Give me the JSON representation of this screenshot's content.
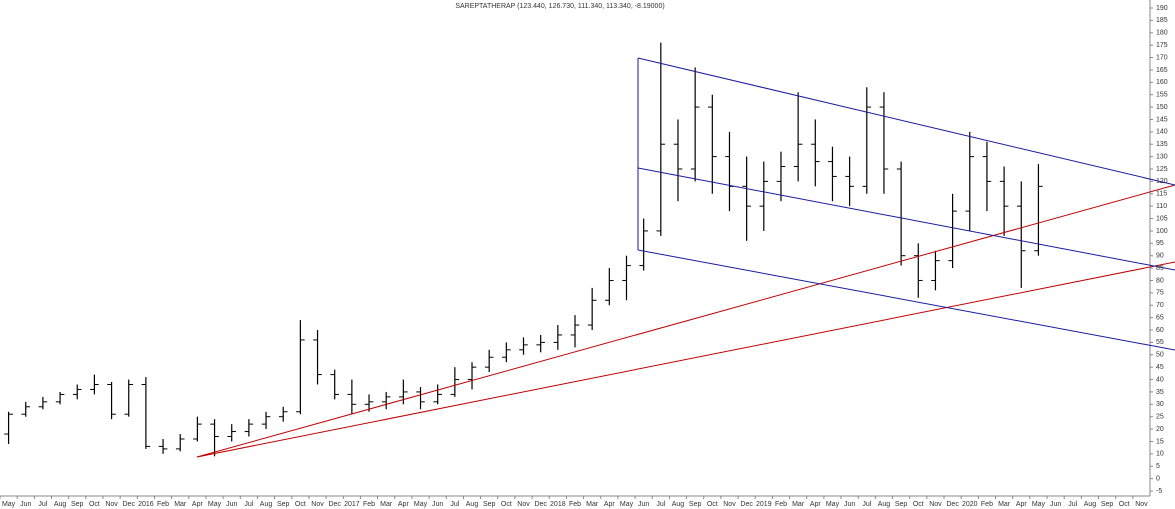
{
  "chart_data": {
    "type": "ohlc",
    "title": "SAREPTATHERAP (123.440, 126.730, 111.340, 113.340, -8.19000)",
    "color": "#000000",
    "categories": [
      "May",
      "Jun",
      "Jul",
      "Aug",
      "Sep",
      "Oct",
      "Nov",
      "Dec",
      "2016",
      "Feb",
      "Mar",
      "Apr",
      "May",
      "Jun",
      "Jul",
      "Aug",
      "Sep",
      "Oct",
      "Nov",
      "Dec",
      "2017",
      "Feb",
      "Mar",
      "Apr",
      "May",
      "Jun",
      "Jul",
      "Aug",
      "Sep",
      "Oct",
      "Nov",
      "Dec",
      "2018",
      "Feb",
      "Mar",
      "Apr",
      "May",
      "Jun",
      "Jul",
      "Aug",
      "Sep",
      "Oct",
      "Nov",
      "Dec",
      "2019",
      "Feb",
      "Mar",
      "Apr",
      "May",
      "Jun",
      "Jul",
      "Aug",
      "Sep",
      "Oct",
      "Nov",
      "Dec",
      "2020",
      "Feb",
      "Mar",
      "Apr",
      "May",
      "Jun",
      "Jul",
      "Aug",
      "Sep",
      "Oct",
      "Nov"
    ],
    "open": [
      18,
      26,
      29,
      31,
      34,
      36,
      38,
      26,
      38,
      13,
      12,
      16,
      22,
      17,
      19,
      22,
      25,
      27,
      56,
      42,
      34,
      30,
      31,
      33,
      35,
      31,
      34,
      40,
      45,
      49,
      52,
      54,
      55,
      58,
      62,
      72,
      80,
      86,
      100,
      135,
      125,
      150,
      130,
      118,
      110,
      120,
      126,
      135,
      128,
      122,
      118,
      150,
      125,
      90,
      80,
      88,
      108,
      130,
      120,
      110,
      92,
      null,
      null,
      null,
      null,
      null,
      null
    ],
    "high": [
      27,
      31,
      33,
      35,
      38,
      42,
      39,
      40,
      41,
      16,
      18,
      25,
      24,
      22,
      24,
      27,
      29,
      64,
      60,
      44,
      40,
      34,
      35,
      40,
      37,
      38,
      45,
      47,
      52,
      55,
      57,
      58,
      62,
      66,
      77,
      85,
      90,
      105,
      176,
      145,
      166,
      155,
      140,
      130,
      128,
      132,
      156,
      145,
      134,
      130,
      158,
      156,
      128,
      95,
      92,
      115,
      140,
      136,
      126,
      120,
      127,
      null,
      null,
      null,
      null,
      null,
      null
    ],
    "low": [
      14,
      25,
      28,
      30,
      32,
      34,
      24,
      25,
      12,
      10,
      11,
      15,
      9,
      15,
      17,
      20,
      23,
      26,
      38,
      32,
      26,
      27,
      28,
      30,
      28,
      30,
      33,
      36,
      43,
      47,
      50,
      51,
      52,
      53,
      60,
      70,
      72,
      84,
      98,
      112,
      120,
      115,
      108,
      96,
      100,
      112,
      120,
      118,
      112,
      110,
      115,
      115,
      86,
      73,
      76,
      85,
      100,
      108,
      98,
      77,
      90,
      null,
      null,
      null,
      null,
      null,
      null
    ],
    "close": [
      26,
      29,
      31,
      34,
      36,
      38,
      26,
      38,
      13,
      12,
      16,
      22,
      17,
      19,
      22,
      25,
      27,
      56,
      42,
      34,
      30,
      31,
      33,
      35,
      31,
      34,
      40,
      45,
      49,
      52,
      54,
      55,
      58,
      62,
      72,
      80,
      86,
      100,
      135,
      125,
      150,
      130,
      118,
      110,
      120,
      126,
      135,
      128,
      122,
      118,
      150,
      125,
      90,
      80,
      88,
      108,
      130,
      120,
      110,
      92,
      118,
      null,
      null,
      null,
      null,
      null,
      null
    ],
    "ylim": [
      -5,
      190
    ],
    "yticks": [
      -5,
      0,
      5,
      10,
      15,
      20,
      25,
      30,
      35,
      40,
      45,
      50,
      55,
      60,
      65,
      70,
      75,
      80,
      85,
      90,
      95,
      100,
      105,
      110,
      115,
      120,
      125,
      130,
      135,
      140,
      145,
      150,
      155,
      160,
      165,
      170,
      175,
      180,
      185,
      190
    ]
  }
}
